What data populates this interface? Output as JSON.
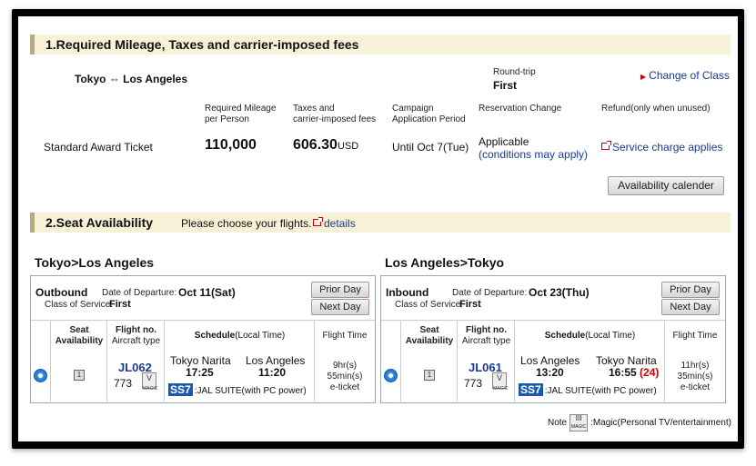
{
  "section1": {
    "title": "1.Required Mileage, Taxes and carrier-imposed fees",
    "route": "Tokyo ⇔ Los Angeles",
    "trip_type": "Round-trip",
    "class": "First",
    "change_class": "Change of Class",
    "headers": {
      "mileage": [
        "Required Mileage",
        "per Person"
      ],
      "taxes": [
        "Taxes and",
        "carrier-imposed fees"
      ],
      "campaign": [
        "Campaign",
        "Application Period"
      ],
      "reservation": "Reservation Change",
      "refund": "Refund(only when unused)"
    },
    "ticket": "Standard Award Ticket",
    "mileage_value": "110,000",
    "taxes_value": "606.30",
    "taxes_unit": "USD",
    "campaign_value": "Until Oct 7(Tue)",
    "reservation_value": "Applicable",
    "reservation_note": "(conditions may apply)",
    "refund_value": "Service charge applies",
    "availability_btn": "Availability calender"
  },
  "section2": {
    "title": "2.Seat Availability",
    "instruction": "Please choose your flights.",
    "details": "details"
  },
  "legs": [
    {
      "heading": "Tokyo>Los Angeles",
      "direction": "Outbound",
      "date_label": "Date of Departure:",
      "date": "Oct 11(Sat)",
      "class_label": "Class of Service:",
      "class": "First",
      "prior": "Prior Day",
      "next": "Next Day",
      "cols": {
        "seat": [
          "Seat",
          "Availability"
        ],
        "flight": [
          "Flight no.",
          "Aircraft type"
        ],
        "schedule_a": "Schedule",
        "schedule_b": "(Local Time)",
        "time": "Flight Time"
      },
      "seat_symbol": "1",
      "flight_no": "JL062",
      "aircraft": "773",
      "badge": "V",
      "badge_sub": "MAGIC",
      "from": "Tokyo Narita",
      "dep": "17:25",
      "to": "Los Angeles",
      "arr": "11:20",
      "arr_extra": "",
      "seat_code": "SS7",
      "seat_desc": ":JAL SUITE(with PC power)",
      "duration": [
        "9hr(s)",
        "55min(s)",
        "e-ticket"
      ]
    },
    {
      "heading": "Los Angeles>Tokyo",
      "direction": "Inbound",
      "date_label": "Date of Departure:",
      "date": "Oct 23(Thu)",
      "class_label": "Class of Service:",
      "class": "First",
      "prior": "Prior Day",
      "next": "Next Day",
      "cols": {
        "seat": [
          "Seat",
          "Availability"
        ],
        "flight": [
          "Flight no.",
          "Aircraft type"
        ],
        "schedule_a": "Schedule",
        "schedule_b": "(Local Time)",
        "time": "Flight Time"
      },
      "seat_symbol": "1",
      "flight_no": "JL061",
      "aircraft": "773",
      "badge": "V",
      "badge_sub": "MAGIC",
      "from": "Los Angeles",
      "dep": "13:20",
      "to": "Tokyo Narita",
      "arr": "16:55",
      "arr_extra": "(24)",
      "seat_code": "SS7",
      "seat_desc": ":JAL SUITE(with PC power)",
      "duration": [
        "11hr(s)",
        "35min(s)",
        "e-ticket"
      ]
    }
  ],
  "note": {
    "label": "Note",
    "badge": "III",
    "badge_sub": "MAGIC",
    "text": ":Magic(Personal TV/entertainment)"
  }
}
